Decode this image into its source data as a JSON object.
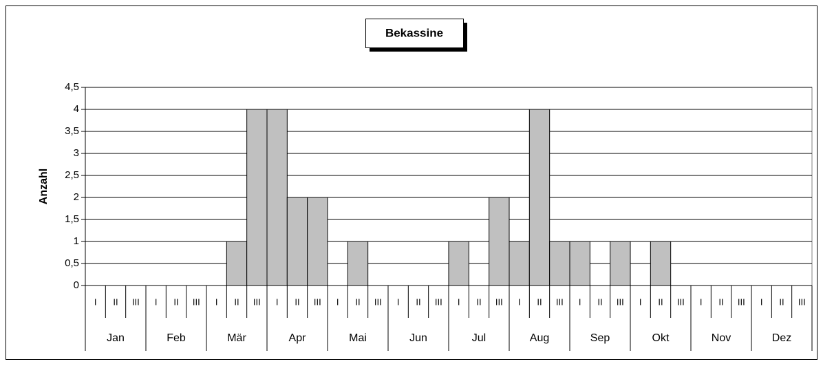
{
  "chart_data": {
    "type": "bar",
    "title": "Bekassine",
    "y_label": "Anzahl",
    "categories": [
      "I",
      "II",
      "III",
      "I",
      "II",
      "III",
      "I",
      "II",
      "III",
      "I",
      "II",
      "III",
      "I",
      "II",
      "III",
      "I",
      "II",
      "III",
      "I",
      "II",
      "III",
      "I",
      "II",
      "III",
      "I",
      "II",
      "III",
      "I",
      "II",
      "III",
      "I",
      "II",
      "III",
      "I",
      "II",
      "III"
    ],
    "groups": [
      "Jan",
      "Feb",
      "Mär",
      "Apr",
      "Mai",
      "Jun",
      "Jul",
      "Aug",
      "Sep",
      "Okt",
      "Nov",
      "Dez"
    ],
    "values": [
      0,
      0,
      0,
      0,
      0,
      0,
      0,
      1,
      4,
      4,
      2,
      2,
      0,
      1,
      0,
      0,
      0,
      0,
      1,
      0,
      2,
      1,
      4,
      1,
      1,
      0,
      1,
      0,
      1,
      0,
      0,
      0,
      0,
      0,
      0,
      0
    ],
    "color": "#c0c0c0",
    "ylim": [
      0,
      4.5
    ],
    "yticks": [
      0,
      {
        "value": 0.5,
        "label": "0,5"
      },
      1,
      {
        "value": 1.5,
        "label": "1,5"
      },
      2,
      {
        "value": 2.5,
        "label": "2,5"
      },
      3,
      {
        "value": 3.5,
        "label": "3,5"
      },
      4,
      {
        "value": 4.5,
        "label": "4,5"
      }
    ],
    "grid": true
  }
}
